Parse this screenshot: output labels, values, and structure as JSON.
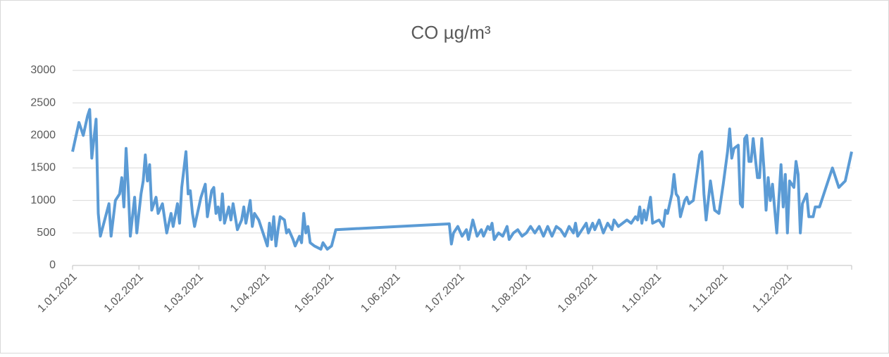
{
  "chart_data": {
    "type": "line",
    "title": "CO µg/m³",
    "color": "#5b9bd5",
    "grid": true,
    "x": [
      "2021-01-01",
      "2021-01-04",
      "2021-01-06",
      "2021-01-08",
      "2021-01-09",
      "2021-01-10",
      "2021-01-12",
      "2021-01-13",
      "2021-01-14",
      "2021-01-16",
      "2021-01-18",
      "2021-01-19",
      "2021-01-21",
      "2021-01-23",
      "2021-01-24",
      "2021-01-25",
      "2021-01-26",
      "2021-01-27",
      "2021-01-28",
      "2021-01-30",
      "2021-01-31",
      "2021-02-02",
      "2021-02-03",
      "2021-02-04",
      "2021-02-05",
      "2021-02-06",
      "2021-02-07",
      "2021-02-09",
      "2021-02-10",
      "2021-02-12",
      "2021-02-14",
      "2021-02-16",
      "2021-02-17",
      "2021-02-19",
      "2021-02-20",
      "2021-02-21",
      "2021-02-23",
      "2021-02-24",
      "2021-02-25",
      "2021-02-26",
      "2021-02-27",
      "2021-03-02",
      "2021-03-04",
      "2021-03-05",
      "2021-03-07",
      "2021-03-08",
      "2021-03-09",
      "2021-03-10",
      "2021-03-11",
      "2021-03-12",
      "2021-03-13",
      "2021-03-15",
      "2021-03-16",
      "2021-03-17",
      "2021-03-19",
      "2021-03-21",
      "2021-03-22",
      "2021-03-23",
      "2021-03-25",
      "2021-03-26",
      "2021-03-27",
      "2021-03-29",
      "2021-03-31",
      "2021-04-02",
      "2021-04-03",
      "2021-04-04",
      "2021-04-05",
      "2021-04-06",
      "2021-04-07",
      "2021-04-08",
      "2021-04-10",
      "2021-04-11",
      "2021-04-12",
      "2021-04-14",
      "2021-04-15",
      "2021-04-17",
      "2021-04-18",
      "2021-04-19",
      "2021-04-20",
      "2021-04-21",
      "2021-04-22",
      "2021-04-24",
      "2021-04-27",
      "2021-04-28",
      "2021-04-30",
      "2021-05-02",
      "2021-05-04",
      "2021-06-26",
      "2021-06-27",
      "2021-06-28",
      "2021-06-30",
      "2021-07-02",
      "2021-07-04",
      "2021-07-05",
      "2021-07-07",
      "2021-07-09",
      "2021-07-11",
      "2021-07-12",
      "2021-07-14",
      "2021-07-15",
      "2021-07-16",
      "2021-07-17",
      "2021-07-19",
      "2021-07-21",
      "2021-07-23",
      "2021-07-24",
      "2021-07-26",
      "2021-07-28",
      "2021-07-30",
      "2021-08-01",
      "2021-08-03",
      "2021-08-05",
      "2021-08-07",
      "2021-08-09",
      "2021-08-11",
      "2021-08-13",
      "2021-08-15",
      "2021-08-17",
      "2021-08-19",
      "2021-08-21",
      "2021-08-23",
      "2021-08-24",
      "2021-08-25",
      "2021-08-27",
      "2021-08-29",
      "2021-08-30",
      "2021-09-01",
      "2021-09-02",
      "2021-09-04",
      "2021-09-06",
      "2021-09-08",
      "2021-09-10",
      "2021-09-11",
      "2021-09-13",
      "2021-09-15",
      "2021-09-17",
      "2021-09-19",
      "2021-09-21",
      "2021-09-22",
      "2021-09-23",
      "2021-09-24",
      "2021-09-25",
      "2021-09-26",
      "2021-09-28",
      "2021-09-29",
      "2021-10-02",
      "2021-10-04",
      "2021-10-05",
      "2021-10-06",
      "2021-10-08",
      "2021-10-09",
      "2021-10-10",
      "2021-10-11",
      "2021-10-12",
      "2021-10-14",
      "2021-10-15",
      "2021-10-16",
      "2021-10-18",
      "2021-10-21",
      "2021-10-22",
      "2021-10-23",
      "2021-10-24",
      "2021-10-26",
      "2021-10-28",
      "2021-10-30",
      "2021-11-01",
      "2021-11-03",
      "2021-11-04",
      "2021-11-05",
      "2021-11-06",
      "2021-11-08",
      "2021-11-09",
      "2021-11-10",
      "2021-11-11",
      "2021-11-12",
      "2021-11-13",
      "2021-11-14",
      "2021-11-15",
      "2021-11-17",
      "2021-11-18",
      "2021-11-19",
      "2021-11-20",
      "2021-11-21",
      "2021-11-22",
      "2021-11-23",
      "2021-11-24",
      "2021-11-26",
      "2021-11-28",
      "2021-11-29",
      "2021-11-30",
      "2021-12-01",
      "2021-12-02",
      "2021-12-04",
      "2021-12-05",
      "2021-12-06",
      "2021-12-07",
      "2021-12-08",
      "2021-12-10",
      "2021-12-11",
      "2021-12-13",
      "2021-12-14",
      "2021-12-16",
      "2021-12-19",
      "2021-12-22",
      "2021-12-25",
      "2021-12-28",
      "2021-12-31"
    ],
    "values": [
      1750,
      2200,
      2000,
      2300,
      2400,
      1650,
      2250,
      800,
      450,
      700,
      950,
      450,
      1000,
      1100,
      1350,
      900,
      1800,
      1200,
      450,
      1050,
      500,
      1100,
      1300,
      1700,
      1300,
      1550,
      850,
      1050,
      800,
      950,
      500,
      800,
      600,
      950,
      650,
      1200,
      1750,
      1100,
      1150,
      800,
      600,
      1050,
      1250,
      750,
      1150,
      1200,
      800,
      900,
      700,
      1100,
      650,
      900,
      700,
      950,
      550,
      700,
      900,
      650,
      1000,
      600,
      800,
      700,
      500,
      300,
      650,
      400,
      750,
      300,
      550,
      750,
      700,
      500,
      550,
      400,
      300,
      450,
      350,
      800,
      500,
      600,
      350,
      300,
      250,
      350,
      250,
      300,
      550,
      640,
      330,
      500,
      600,
      450,
      550,
      400,
      700,
      450,
      550,
      450,
      600,
      550,
      650,
      400,
      500,
      450,
      600,
      400,
      500,
      550,
      450,
      500,
      600,
      500,
      600,
      450,
      600,
      450,
      600,
      550,
      450,
      600,
      500,
      650,
      450,
      550,
      650,
      500,
      650,
      550,
      700,
      500,
      650,
      550,
      700,
      600,
      650,
      700,
      650,
      750,
      700,
      900,
      650,
      850,
      700,
      1050,
      650,
      700,
      600,
      850,
      800,
      1100,
      1400,
      1100,
      1050,
      750,
      1000,
      1050,
      950,
      1000,
      1700,
      1750,
      1100,
      700,
      1300,
      850,
      800,
      1250,
      1750,
      2100,
      1650,
      1800,
      1850,
      950,
      900,
      1950,
      2000,
      1600,
      1600,
      1950,
      1350,
      1350,
      1950,
      1500,
      850,
      1350,
      1000,
      1250,
      500,
      1550,
      900,
      1400,
      500,
      1300,
      1200,
      1600,
      1400,
      500,
      950,
      1100,
      750,
      750,
      900,
      900,
      1200,
      1500,
      1200,
      1300,
      1750
    ],
    "xlim": [
      "2021-01-01",
      "2021-12-31"
    ],
    "xticks": [
      {
        "value": "2021-01-01",
        "label": "1.01.2021"
      },
      {
        "value": "2021-02-01",
        "label": "1.02.2021"
      },
      {
        "value": "2021-03-01",
        "label": "1.03.2021"
      },
      {
        "value": "2021-04-01",
        "label": "1.04.2021"
      },
      {
        "value": "2021-05-01",
        "label": "1.05.2021"
      },
      {
        "value": "2021-06-01",
        "label": "1.06.2021"
      },
      {
        "value": "2021-07-01",
        "label": "1.07.2021"
      },
      {
        "value": "2021-08-01",
        "label": "1.08.2021"
      },
      {
        "value": "2021-09-01",
        "label": "1.09.2021"
      },
      {
        "value": "2021-10-01",
        "label": "1.10.2021"
      },
      {
        "value": "2021-11-01",
        "label": "1.11.2021"
      },
      {
        "value": "2021-12-01",
        "label": "1.12.2021"
      }
    ],
    "ylim": [
      0,
      3000
    ],
    "yticks": [
      0,
      500,
      1000,
      1500,
      2000,
      2500,
      3000
    ]
  }
}
